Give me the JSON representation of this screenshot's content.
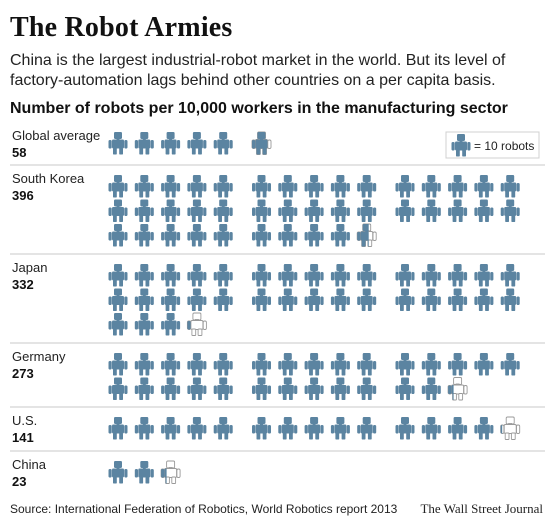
{
  "title": "The Robot Armies",
  "subtitle": "China is the largest industrial-robot market in the world. But its level of factory-automation lags behind other countries on a per capita basis.",
  "section_heading": "Number of robots per 10,000 workers in the manufacturing sector",
  "legend": {
    "text": "= 10 robots",
    "unit_value": 10
  },
  "source": "Source: International Federation of Robotics, World Robotics report 2013",
  "credit": "The Wall Street Journal",
  "colors": {
    "robot_fill": "#5b84a1",
    "robot_outline": "#9a9a9a",
    "divider": "#c8c8c8",
    "text": "#222222"
  },
  "chart_data": {
    "type": "pictogram",
    "title": "Number of robots per 10,000 workers in the manufacturing sector",
    "unit": "robots per 10,000 workers",
    "icon_value": 10,
    "categories": [
      "Global average",
      "South Korea",
      "Japan",
      "Germany",
      "U.S.",
      "China"
    ],
    "values": [
      58,
      396,
      332,
      273,
      141,
      23
    ],
    "value_labels": [
      "58",
      "396",
      "332",
      "273",
      "141",
      "23"
    ]
  }
}
